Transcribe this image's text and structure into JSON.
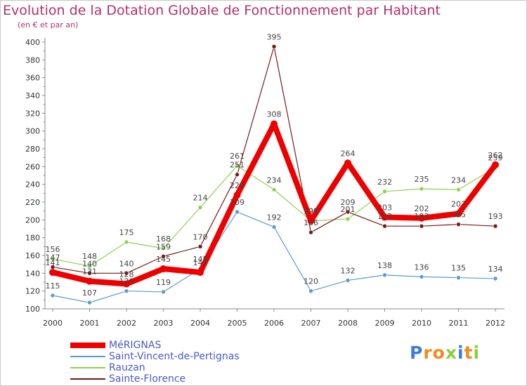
{
  "title": "Evolution de la Dotation Globale de Fonctionnement par Habitant",
  "subtitle": "(en € et par an)",
  "chart_data": {
    "type": "line",
    "x": [
      "2000",
      "2001",
      "2002",
      "2003",
      "2004",
      "2005",
      "2006",
      "2007",
      "2008",
      "2009",
      "2010",
      "2011",
      "2012"
    ],
    "ylim": [
      100,
      400
    ],
    "yticks": [
      100,
      120,
      140,
      160,
      180,
      200,
      220,
      240,
      260,
      280,
      300,
      320,
      340,
      360,
      380,
      400
    ],
    "grid": false,
    "legend_position": "bottom",
    "series": [
      {
        "name": "MéRIGNAS",
        "color": "#ee0000",
        "values": [
          141,
          131,
          128,
          145,
          141,
          228,
          308,
          199,
          264,
          203,
          202,
          207,
          262
        ]
      },
      {
        "name": "Saint-Vincent-de-Pertignas",
        "color": "#5b9bd5",
        "values": [
          115,
          107,
          120,
          119,
          145,
          209,
          192,
          120,
          132,
          138,
          136,
          135,
          134
        ]
      },
      {
        "name": "Rauzan",
        "color": "#8fd14f",
        "values": [
          156,
          148,
          175,
          168,
          214,
          261,
          234,
          199,
          201,
          232,
          235,
          234,
          259
        ]
      },
      {
        "name": "Sainte-Florence",
        "color": "#7a1a1a",
        "values": [
          147,
          140,
          140,
          159,
          170,
          251,
          395,
          186,
          209,
          193,
          193,
          195,
          193
        ]
      }
    ]
  },
  "logo": {
    "letters": [
      "P",
      "r",
      "o",
      "x",
      "i",
      "t",
      "i"
    ],
    "colors": [
      "#3a7fd5",
      "#f28b1e",
      "#f28b1e",
      "#8ccf3a",
      "#3a7fd5",
      "#f28b1e",
      "#8ccf3a"
    ]
  }
}
